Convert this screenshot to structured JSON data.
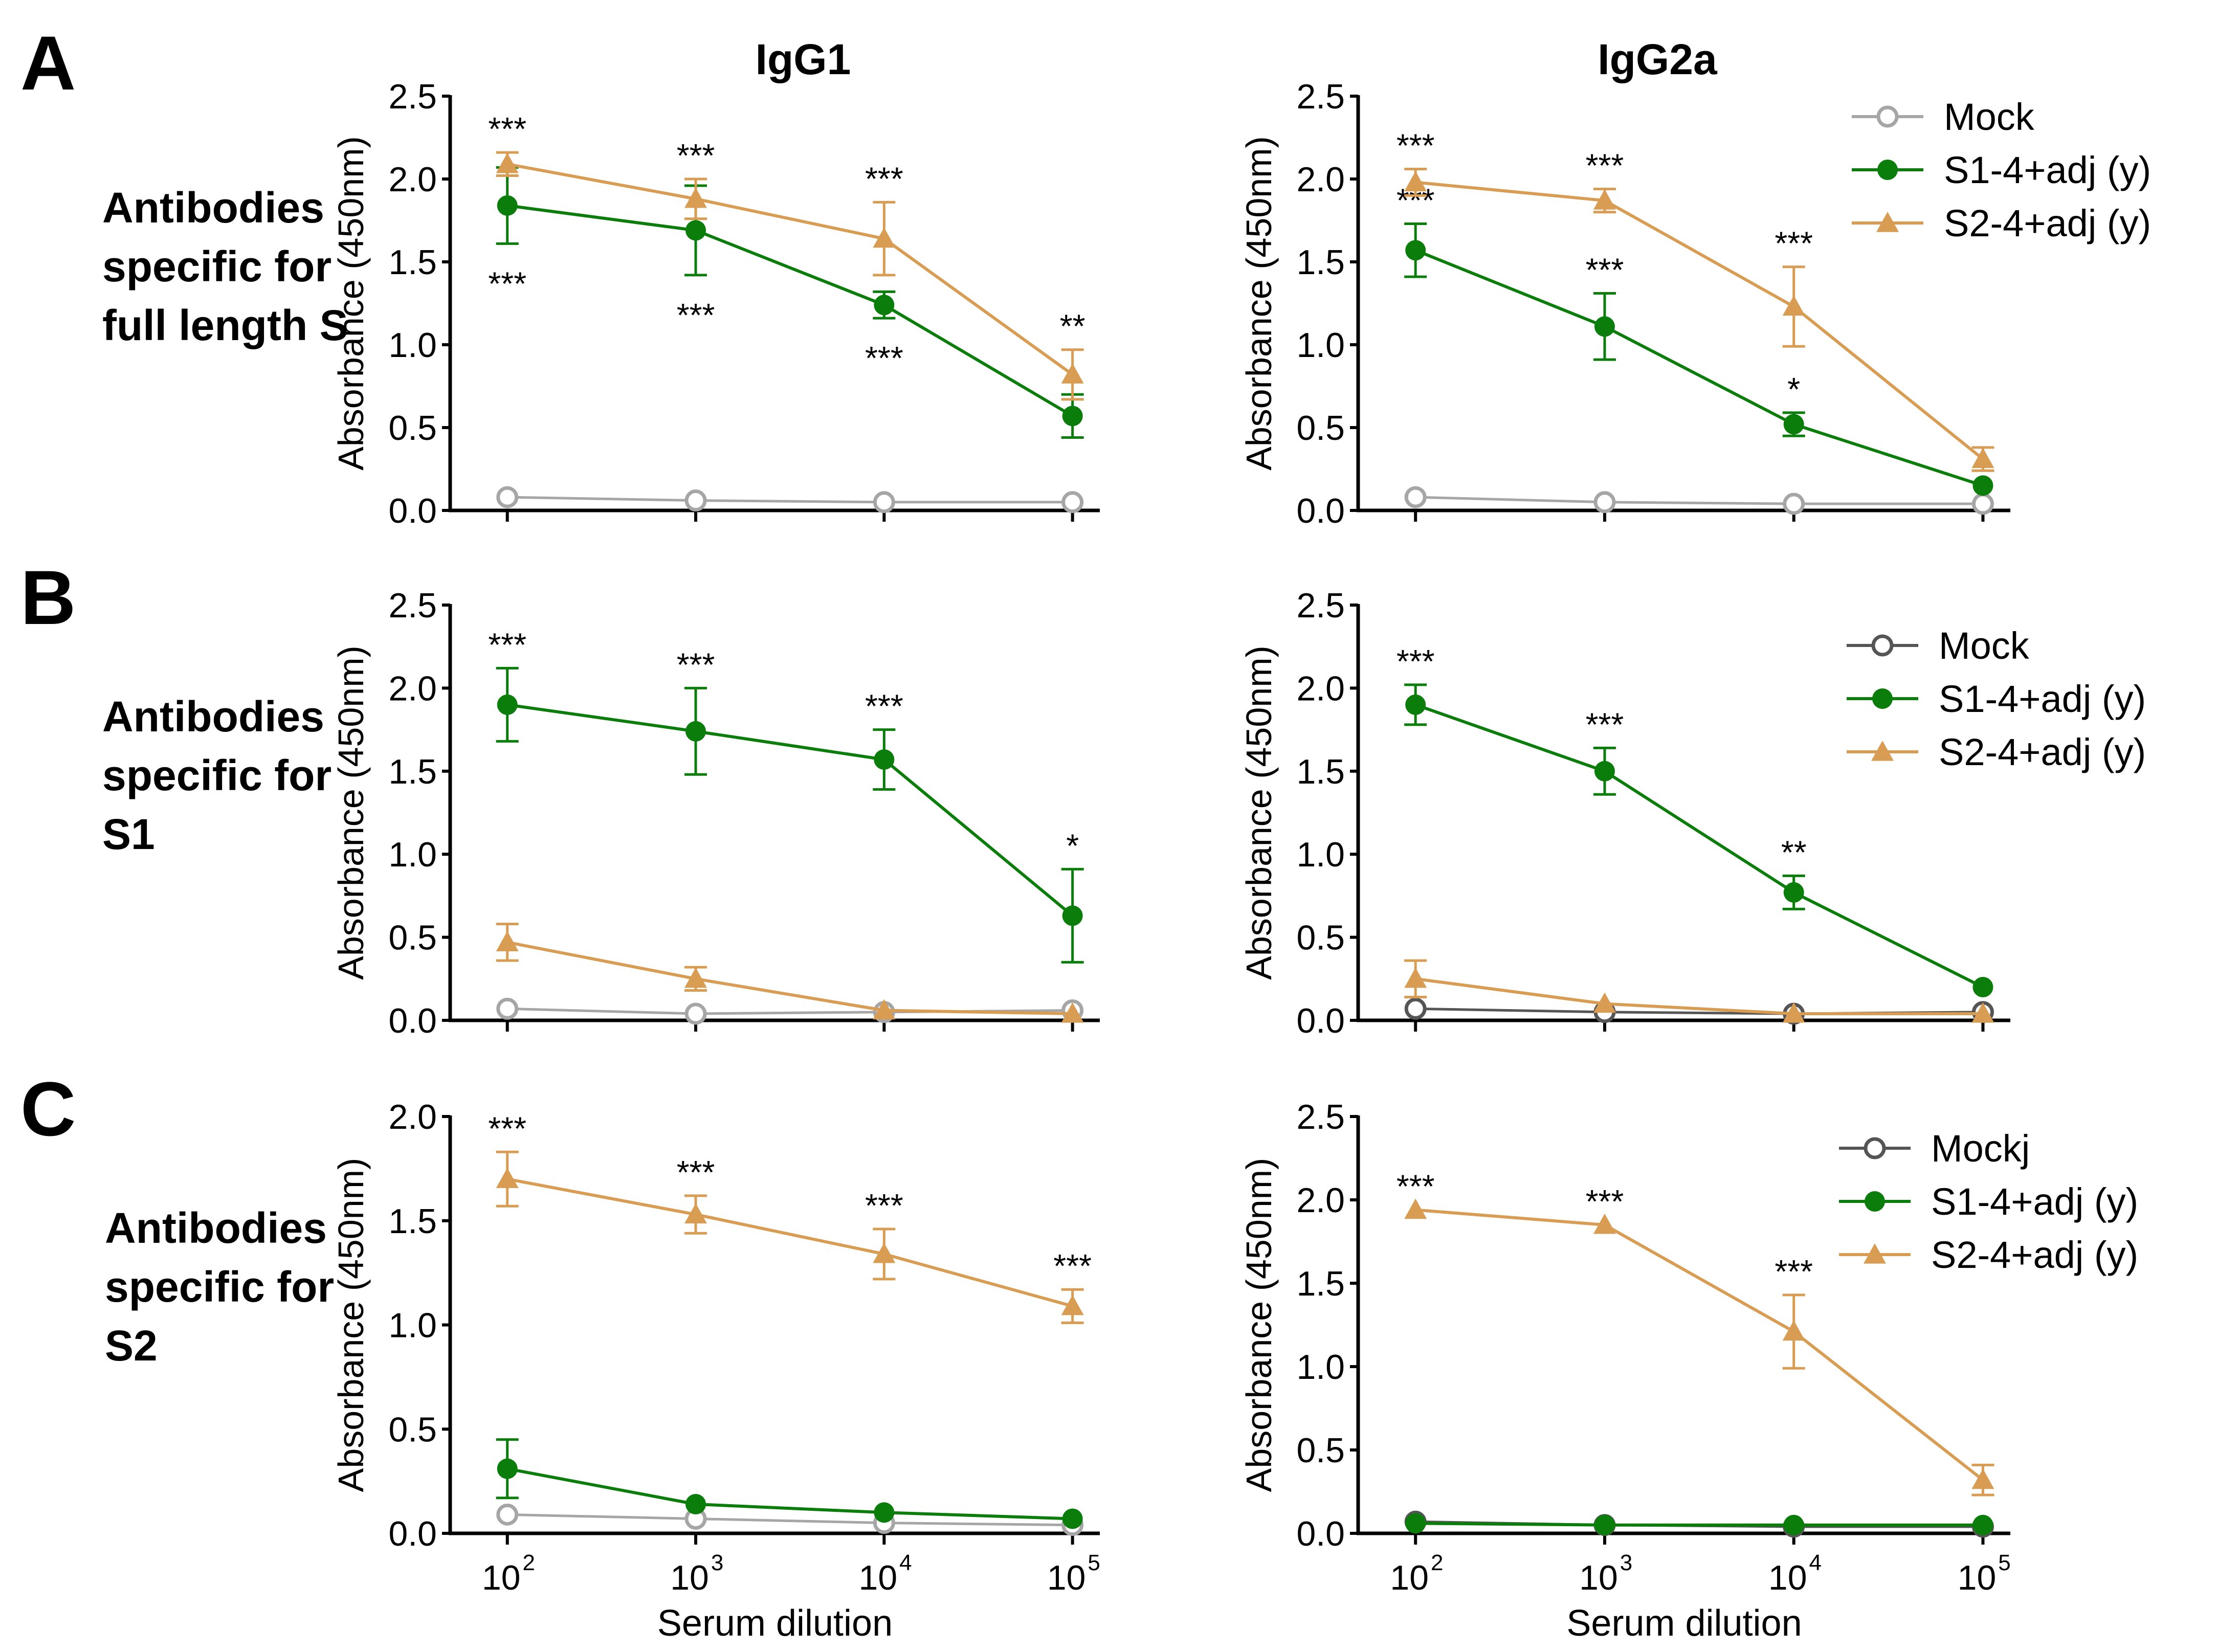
{
  "figure": {
    "col_titles": [
      "IgG1",
      "IgG2a"
    ],
    "panel_letters": [
      "A",
      "B",
      "C"
    ],
    "row_labels": [
      [
        "Antibodies",
        "specific for",
        "full length S"
      ],
      [
        "Antibodies",
        "specific for",
        "S1"
      ],
      [
        "Antibodies",
        "specific for",
        "S2"
      ]
    ],
    "ylabel": "Absorbance (450nm)",
    "xlabel": "Serum dilution",
    "x_tick_labels": [
      {
        "base": "10",
        "exp": "2"
      },
      {
        "base": "10",
        "exp": "3"
      },
      {
        "base": "10",
        "exp": "4"
      },
      {
        "base": "10",
        "exp": "5"
      }
    ],
    "colors": {
      "mock_light": "#a6a6a6",
      "mock_dark": "#555555",
      "s1": "#0a7d0a",
      "s2": "#d89c52"
    },
    "legends": [
      {
        "items": [
          "Mock",
          "S1-4+adj (y)",
          "S2-4+adj (y)"
        ],
        "mock_color": "#a6a6a6"
      },
      {
        "items": [
          "Mock",
          "S1-4+adj (y)",
          "S2-4+adj (y)"
        ],
        "mock_color": "#555555"
      },
      {
        "items": [
          "Mockj",
          "S1-4+adj (y)",
          "S2-4+adj (y)"
        ],
        "mock_color": "#555555"
      }
    ]
  },
  "chart_data": [
    {
      "type": "line",
      "panel": "A",
      "title": "IgG1",
      "x": [
        2,
        3,
        4,
        5
      ],
      "ylim": [
        0,
        2.5
      ],
      "yticks": [
        0.0,
        0.5,
        1.0,
        1.5,
        2.0,
        2.5
      ],
      "ylabel": "Absorbance (450nm)",
      "xlabel": "",
      "series": [
        {
          "name": "Mock",
          "values": [
            0.08,
            0.06,
            0.05,
            0.05
          ],
          "err": [
            0,
            0,
            0,
            0
          ],
          "mock_color": "#a6a6a6"
        },
        {
          "name": "S1-4+adj (y)",
          "values": [
            1.84,
            1.69,
            1.24,
            0.57
          ],
          "err": [
            0.23,
            0.27,
            0.08,
            0.13
          ],
          "sig": [
            "***",
            "***",
            "***",
            ""
          ],
          "sig_pos": "below"
        },
        {
          "name": "S2-4+adj (y)",
          "values": [
            2.09,
            1.88,
            1.64,
            0.82
          ],
          "err": [
            0.07,
            0.12,
            0.22,
            0.15
          ],
          "sig": [
            "***",
            "***",
            "***",
            "**"
          ],
          "sig_pos": "above"
        }
      ]
    },
    {
      "type": "line",
      "panel": "A",
      "title": "IgG2a",
      "x": [
        2,
        3,
        4,
        5
      ],
      "ylim": [
        0,
        2.5
      ],
      "yticks": [
        0.0,
        0.5,
        1.0,
        1.5,
        2.0,
        2.5
      ],
      "ylabel": "Absorbance (450nm)",
      "xlabel": "",
      "series": [
        {
          "name": "Mock",
          "values": [
            0.08,
            0.05,
            0.04,
            0.04
          ],
          "err": [
            0,
            0,
            0,
            0
          ],
          "mock_color": "#a6a6a6"
        },
        {
          "name": "S1-4+adj (y)",
          "values": [
            1.57,
            1.11,
            0.52,
            0.15
          ],
          "err": [
            0.16,
            0.2,
            0.07,
            0
          ],
          "sig": [
            "***",
            "***",
            "*",
            ""
          ],
          "sig_pos": "above"
        },
        {
          "name": "S2-4+adj (y)",
          "values": [
            1.98,
            1.87,
            1.23,
            0.31
          ],
          "err": [
            0.08,
            0.07,
            0.24,
            0.07
          ],
          "sig": [
            "***",
            "***",
            "***",
            ""
          ],
          "sig_pos": "above"
        }
      ]
    },
    {
      "type": "line",
      "panel": "B",
      "title": "",
      "x": [
        2,
        3,
        4,
        5
      ],
      "ylim": [
        0,
        2.5
      ],
      "yticks": [
        0.0,
        0.5,
        1.0,
        1.5,
        2.0,
        2.5
      ],
      "ylabel": "Absorbance (450nm)",
      "xlabel": "",
      "series": [
        {
          "name": "Mock",
          "values": [
            0.07,
            0.04,
            0.05,
            0.06
          ],
          "err": [
            0,
            0,
            0,
            0
          ],
          "mock_color": "#a6a6a6"
        },
        {
          "name": "S1-4+adj (y)",
          "values": [
            1.9,
            1.74,
            1.57,
            0.63
          ],
          "err": [
            0.22,
            0.26,
            0.18,
            0.28
          ],
          "sig": [
            "***",
            "***",
            "***",
            "*"
          ],
          "sig_pos": "above"
        },
        {
          "name": "S2-4+adj (y)",
          "values": [
            0.47,
            0.25,
            0.06,
            0.04
          ],
          "err": [
            0.11,
            0.07,
            0,
            0
          ],
          "sig": [
            "",
            "",
            "",
            ""
          ],
          "sig_pos": "above"
        }
      ]
    },
    {
      "type": "line",
      "panel": "B",
      "title": "",
      "x": [
        2,
        3,
        4,
        5
      ],
      "ylim": [
        0,
        2.5
      ],
      "yticks": [
        0.0,
        0.5,
        1.0,
        1.5,
        2.0,
        2.5
      ],
      "ylabel": "Absorbance (450nm)",
      "xlabel": "",
      "series": [
        {
          "name": "Mock",
          "values": [
            0.07,
            0.05,
            0.04,
            0.05
          ],
          "err": [
            0,
            0,
            0,
            0
          ],
          "mock_color": "#555555"
        },
        {
          "name": "S1-4+adj (y)",
          "values": [
            1.9,
            1.5,
            0.77,
            0.2
          ],
          "err": [
            0.12,
            0.14,
            0.1,
            0
          ],
          "sig": [
            "***",
            "***",
            "**",
            ""
          ],
          "sig_pos": "above"
        },
        {
          "name": "S2-4+adj (y)",
          "values": [
            0.25,
            0.1,
            0.04,
            0.04
          ],
          "err": [
            0.11,
            0,
            0,
            0
          ],
          "sig": [
            "",
            "",
            "",
            ""
          ],
          "sig_pos": "above"
        }
      ]
    },
    {
      "type": "line",
      "panel": "C",
      "title": "",
      "x": [
        2,
        3,
        4,
        5
      ],
      "ylim": [
        0,
        2.0
      ],
      "yticks": [
        0.0,
        0.5,
        1.0,
        1.5,
        2.0
      ],
      "ylabel": "Absorbance (450nm)",
      "xlabel": "Serum dilution",
      "series": [
        {
          "name": "Mock",
          "values": [
            0.09,
            0.07,
            0.05,
            0.04
          ],
          "err": [
            0,
            0,
            0,
            0
          ],
          "mock_color": "#a6a6a6"
        },
        {
          "name": "S1-4+adj (y)",
          "values": [
            0.31,
            0.14,
            0.1,
            0.07
          ],
          "err": [
            0.14,
            0,
            0,
            0
          ],
          "sig": [
            "",
            "",
            "",
            ""
          ],
          "sig_pos": "above"
        },
        {
          "name": "S2-4+adj (y)",
          "values": [
            1.7,
            1.53,
            1.34,
            1.09
          ],
          "err": [
            0.13,
            0.09,
            0.12,
            0.08
          ],
          "sig": [
            "***",
            "***",
            "***",
            "***"
          ],
          "sig_pos": "above"
        }
      ]
    },
    {
      "type": "line",
      "panel": "C",
      "title": "",
      "x": [
        2,
        3,
        4,
        5
      ],
      "ylim": [
        0,
        2.5
      ],
      "yticks": [
        0.0,
        0.5,
        1.0,
        1.5,
        2.0,
        2.5
      ],
      "ylabel": "Absorbance (450nm)",
      "xlabel": "Serum dilution",
      "series": [
        {
          "name": "Mock",
          "values": [
            0.07,
            0.05,
            0.04,
            0.04
          ],
          "err": [
            0,
            0,
            0,
            0
          ],
          "mock_color": "#555555"
        },
        {
          "name": "S1-4+adj (y)",
          "values": [
            0.06,
            0.05,
            0.05,
            0.05
          ],
          "err": [
            0,
            0,
            0,
            0
          ],
          "sig": [
            "",
            "",
            "",
            ""
          ],
          "sig_pos": "above"
        },
        {
          "name": "S2-4+adj (y)",
          "values": [
            1.94,
            1.85,
            1.21,
            0.32
          ],
          "err": [
            0,
            0,
            0.22,
            0.09
          ],
          "sig": [
            "***",
            "***",
            "***",
            ""
          ],
          "sig_pos": "above"
        }
      ]
    }
  ]
}
